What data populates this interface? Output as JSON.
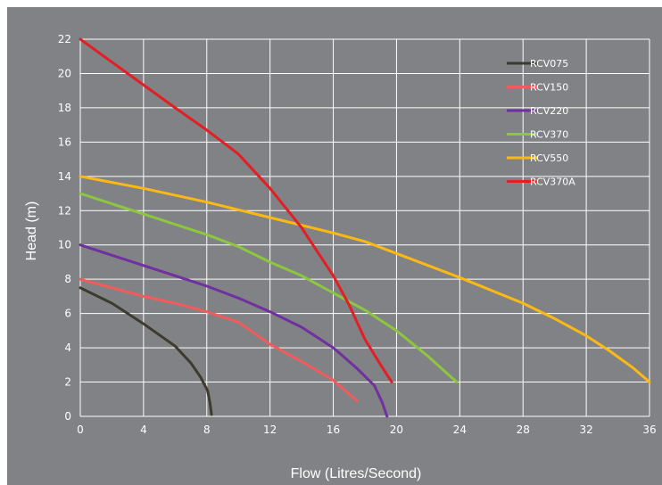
{
  "chart_data": {
    "type": "line",
    "title": "",
    "xlabel": "Flow (Litres/Second)",
    "ylabel": "Head (m)",
    "xlim": [
      0,
      36
    ],
    "ylim": [
      0,
      22
    ],
    "x_ticks": [
      0,
      4,
      8,
      12,
      16,
      20,
      24,
      28,
      32,
      36
    ],
    "y_ticks": [
      0,
      2,
      4,
      6,
      8,
      10,
      12,
      14,
      16,
      18,
      20,
      22
    ],
    "x_tick_labels": [
      "0",
      "4",
      "8",
      "12",
      "16",
      "20",
      "24",
      "28",
      "32",
      "36"
    ],
    "y_tick_labels": [
      "0",
      "2",
      "4",
      "6",
      "8",
      "10",
      "12",
      "14",
      "16",
      "18",
      "20",
      "22"
    ],
    "grid": true,
    "legend_position": "top-right",
    "series": [
      {
        "name": "RCV075",
        "color": "#3d3b2c",
        "points": [
          [
            0,
            7.5
          ],
          [
            2,
            6.6
          ],
          [
            4,
            5.4
          ],
          [
            6,
            4.1
          ],
          [
            7,
            3.1
          ],
          [
            7.6,
            2.3
          ],
          [
            8.05,
            1.5
          ],
          [
            8.2,
            0.8
          ],
          [
            8.3,
            0.1
          ]
        ]
      },
      {
        "name": "RCV150",
        "color": "#f15b5b",
        "points": [
          [
            0,
            8.0
          ],
          [
            2,
            7.5
          ],
          [
            4,
            7.0
          ],
          [
            6,
            6.6
          ],
          [
            8,
            6.1
          ],
          [
            10,
            5.5
          ],
          [
            12,
            4.2
          ],
          [
            14,
            3.2
          ],
          [
            16,
            2.1
          ],
          [
            17.5,
            0.9
          ]
        ]
      },
      {
        "name": "RCV220",
        "color": "#7030a0",
        "points": [
          [
            0,
            10.0
          ],
          [
            2,
            9.4
          ],
          [
            4,
            8.8
          ],
          [
            6,
            8.2
          ],
          [
            8,
            7.6
          ],
          [
            10,
            6.9
          ],
          [
            12,
            6.1
          ],
          [
            14,
            5.2
          ],
          [
            16,
            4.0
          ],
          [
            17.5,
            2.8
          ],
          [
            18.6,
            1.8
          ],
          [
            19.1,
            0.8
          ],
          [
            19.4,
            0.0
          ]
        ]
      },
      {
        "name": "RCV370",
        "color": "#8dc63f",
        "points": [
          [
            0,
            13.0
          ],
          [
            2,
            12.4
          ],
          [
            4,
            11.8
          ],
          [
            6,
            11.2
          ],
          [
            8,
            10.6
          ],
          [
            10,
            9.9
          ],
          [
            12,
            9.0
          ],
          [
            14,
            8.2
          ],
          [
            16,
            7.2
          ],
          [
            18,
            6.2
          ],
          [
            20,
            5.0
          ],
          [
            22,
            3.5
          ],
          [
            23.8,
            2.0
          ]
        ]
      },
      {
        "name": "RCV550",
        "color": "#fdb913",
        "points": [
          [
            0,
            14.0
          ],
          [
            4,
            13.3
          ],
          [
            8,
            12.5
          ],
          [
            12,
            11.6
          ],
          [
            16,
            10.7
          ],
          [
            18,
            10.2
          ],
          [
            20,
            9.5
          ],
          [
            24,
            8.1
          ],
          [
            28,
            6.6
          ],
          [
            30,
            5.7
          ],
          [
            32,
            4.7
          ],
          [
            33.5,
            3.8
          ],
          [
            35,
            2.8
          ],
          [
            36,
            2.0
          ]
        ]
      },
      {
        "name": "RCV370A",
        "color": "#e31e24",
        "points": [
          [
            0,
            22.0
          ],
          [
            3,
            20.0
          ],
          [
            6,
            18.0
          ],
          [
            8,
            16.7
          ],
          [
            10,
            15.3
          ],
          [
            12,
            13.3
          ],
          [
            14,
            11.0
          ],
          [
            15,
            9.6
          ],
          [
            16,
            8.2
          ],
          [
            17,
            6.5
          ],
          [
            18,
            4.5
          ],
          [
            19,
            3.0
          ],
          [
            19.7,
            2.0
          ]
        ]
      }
    ]
  }
}
